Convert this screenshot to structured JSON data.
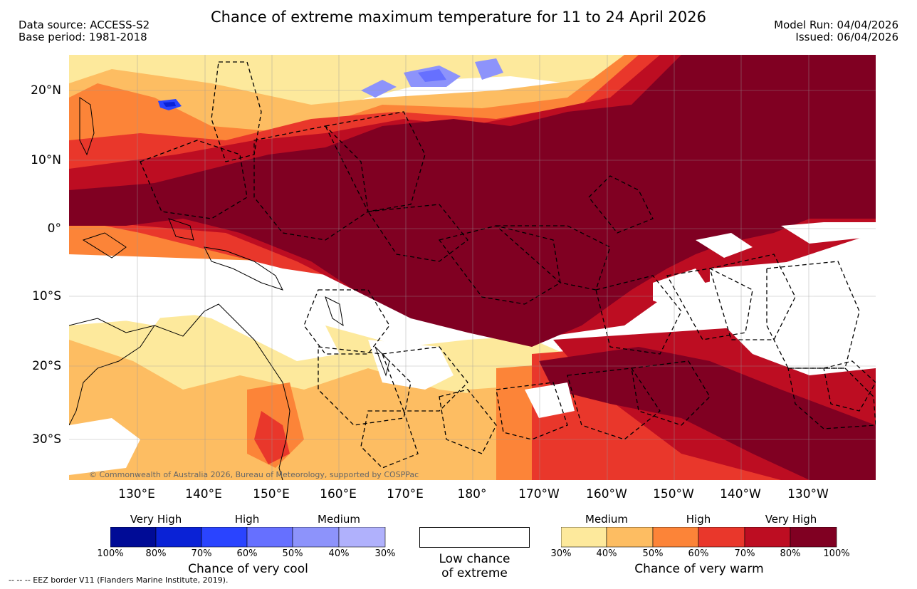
{
  "title": "Chance of extreme maximum temperature for 11 to 24 April 2026",
  "meta_left": {
    "source": "Data source: ACCESS-S2",
    "base": "Base period: 1981-2018"
  },
  "meta_right": {
    "run": "Model Run: 04/04/2026",
    "issued": "Issued: 06/04/2026"
  },
  "lat_labels": [
    "20°N",
    "10°N",
    "0°",
    "10°S",
    "20°S",
    "30°S"
  ],
  "lon_labels": [
    "130°E",
    "140°E",
    "150°E",
    "160°E",
    "170°E",
    "180°",
    "170°W",
    "160°W",
    "150°W",
    "140°W",
    "130°W"
  ],
  "copyright": "© Commonwealth of Australia 2026, Bureau of Meteorology, supported by COSPPac",
  "cool_legend": {
    "groups": [
      "Very High",
      "High",
      "Medium"
    ],
    "ticks": [
      "100%",
      "80%",
      "70%",
      "60%",
      "50%",
      "40%",
      "30%"
    ],
    "colors": [
      "#000b96",
      "#0a22d6",
      "#2a44ff",
      "#6670ff",
      "#8d93fb",
      "#b0b1fc"
    ],
    "title": "Chance of very cool"
  },
  "neutral_legend": {
    "line1": "Low chance",
    "line2": "of extreme"
  },
  "warm_legend": {
    "groups": [
      "Medium",
      "High",
      "Very High"
    ],
    "ticks": [
      "30%",
      "40%",
      "50%",
      "60%",
      "70%",
      "80%",
      "100%"
    ],
    "colors": [
      "#fde99c",
      "#fdbd62",
      "#fc8438",
      "#e9372b",
      "#bd0d22",
      "#800022"
    ],
    "title": "Chance of very warm"
  },
  "footer": "-- -- -- EEZ border V11 (Flanders Marine Institute, 2019)."
}
